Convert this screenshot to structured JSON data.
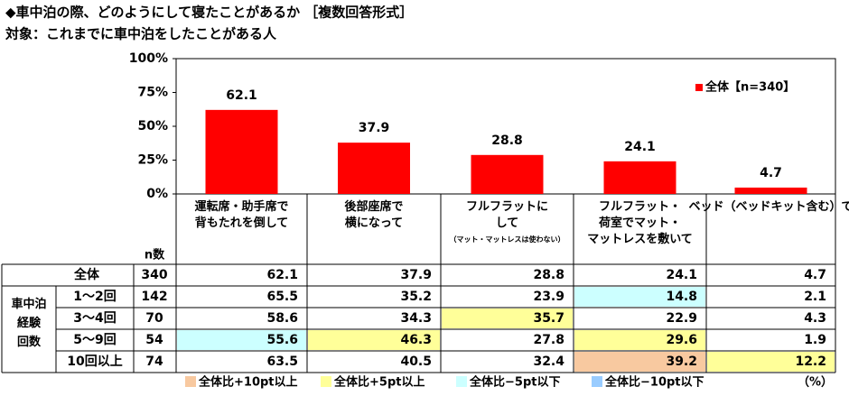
{
  "header": {
    "title": "◆車中泊の際、どのようにして寝たことがあるか ［複数回答形式］",
    "subtitle": "対象：これまでに車中泊をしたことがある人"
  },
  "chart_data": {
    "type": "bar",
    "categories": [
      "運転席・助手席で\n背もたれを倒して",
      "後部座席で\n横になって",
      "フルフラットに\nして\n（マット・マットレスは使わない）",
      "フルフラット・\n荷室でマット・\nマットレスを敷いて",
      "ベッド（ベッドキット含む）で"
    ],
    "series": [
      {
        "name": "全体【n=340】",
        "color": "#ff0000",
        "values": [
          62.1,
          37.9,
          28.8,
          24.1,
          4.7
        ]
      }
    ],
    "ylim": [
      0,
      100
    ],
    "yticks": [
      {
        "value": 0,
        "label": "0%"
      },
      {
        "value": 25,
        "label": "25%"
      },
      {
        "value": 50,
        "label": "50%"
      },
      {
        "value": 75,
        "label": "75%"
      },
      {
        "value": 100,
        "label": "100%"
      }
    ],
    "grid": false,
    "legend": "top-right"
  },
  "table": {
    "n_header": "n数",
    "group_label": "車中泊\n経験\n回数",
    "rows": [
      {
        "label": "全体",
        "n": 340,
        "values": [
          62.1,
          37.9,
          28.8,
          24.1,
          4.7
        ],
        "highlight": [
          null,
          null,
          null,
          null,
          null
        ]
      },
      {
        "label": "1～2回",
        "n": 142,
        "values": [
          65.5,
          35.2,
          23.9,
          14.8,
          2.1
        ],
        "highlight": [
          null,
          null,
          null,
          2,
          null
        ]
      },
      {
        "label": "3～4回",
        "n": 70,
        "values": [
          58.6,
          34.3,
          35.7,
          22.9,
          4.3
        ],
        "highlight": [
          null,
          null,
          1,
          null,
          null
        ]
      },
      {
        "label": "5～9回",
        "n": 54,
        "values": [
          55.6,
          46.3,
          27.8,
          29.6,
          1.9
        ],
        "highlight": [
          2,
          1,
          null,
          1,
          null
        ]
      },
      {
        "label": "10回以上",
        "n": 74,
        "values": [
          63.5,
          40.5,
          32.4,
          39.2,
          12.2
        ],
        "highlight": [
          null,
          null,
          null,
          0,
          1
        ]
      }
    ],
    "legend": [
      {
        "label": "全体比+10pt以上",
        "color": "#f8c9a0"
      },
      {
        "label": "全体比+5pt以上",
        "color": "#ffff99"
      },
      {
        "label": "全体比−5pt以下",
        "color": "#ccffff"
      },
      {
        "label": "全体比−10pt以下",
        "color": "#99ccff"
      }
    ],
    "unit": "（%）"
  }
}
